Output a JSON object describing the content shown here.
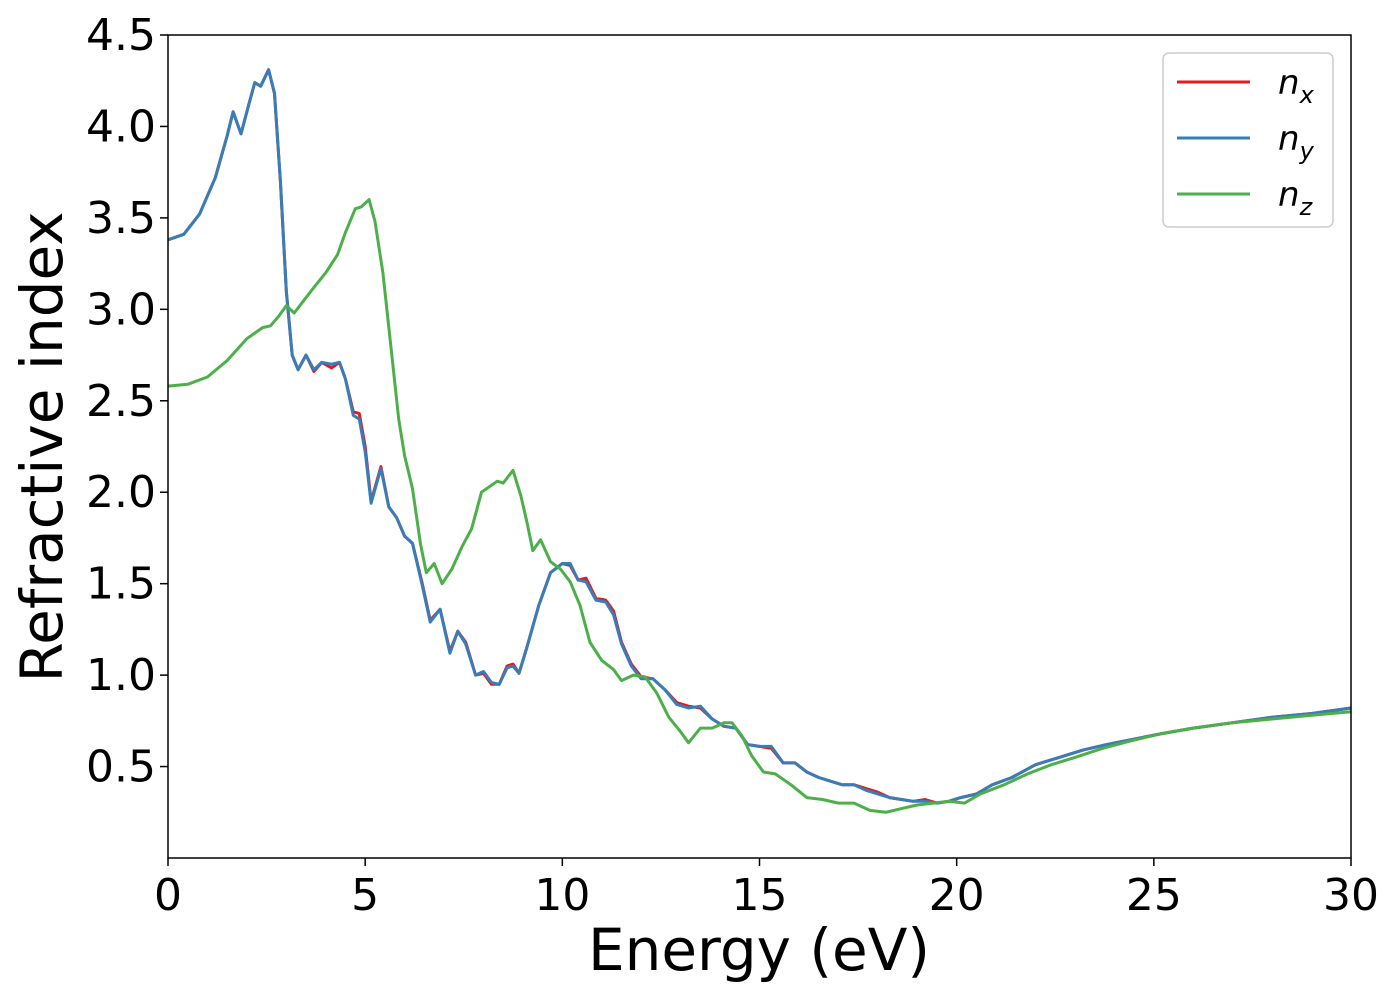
{
  "chart_data": {
    "type": "line",
    "xlabel": "Energy (eV)",
    "ylabel": "Refractive index",
    "xlim": [
      0,
      30
    ],
    "ylim": [
      0,
      4.5
    ],
    "x_ticks": [
      0,
      5,
      10,
      15,
      20,
      25,
      30
    ],
    "y_ticks": [
      0.5,
      1.0,
      1.5,
      2.0,
      2.5,
      3.0,
      3.5,
      4.0,
      4.5
    ],
    "x_tick_labels": [
      "0",
      "5",
      "10",
      "15",
      "20",
      "25",
      "30"
    ],
    "y_tick_labels": [
      "0.5",
      "1.0",
      "1.5",
      "2.0",
      "2.5",
      "3.0",
      "3.5",
      "4.0",
      "4.5"
    ],
    "grid": false,
    "legend_position": "top-right",
    "series": [
      {
        "name": "n_x",
        "label_base": "n",
        "label_sub": "x",
        "color": "#e41a1c",
        "points": [
          [
            0,
            3.38
          ],
          [
            0.4,
            3.41
          ],
          [
            0.8,
            3.52
          ],
          [
            1.2,
            3.72
          ],
          [
            1.5,
            3.95
          ],
          [
            1.65,
            4.08
          ],
          [
            1.85,
            3.96
          ],
          [
            2.05,
            4.12
          ],
          [
            2.2,
            4.24
          ],
          [
            2.35,
            4.22
          ],
          [
            2.55,
            4.31
          ],
          [
            2.7,
            4.18
          ],
          [
            2.85,
            3.7
          ],
          [
            3.0,
            3.1
          ],
          [
            3.15,
            2.75
          ],
          [
            3.3,
            2.67
          ],
          [
            3.5,
            2.75
          ],
          [
            3.7,
            2.66
          ],
          [
            3.9,
            2.71
          ],
          [
            4.15,
            2.68
          ],
          [
            4.35,
            2.71
          ],
          [
            4.5,
            2.62
          ],
          [
            4.7,
            2.44
          ],
          [
            4.85,
            2.43
          ],
          [
            5.0,
            2.25
          ],
          [
            5.15,
            1.95
          ],
          [
            5.4,
            2.14
          ],
          [
            5.6,
            1.92
          ],
          [
            5.8,
            1.86
          ],
          [
            6.0,
            1.76
          ],
          [
            6.2,
            1.72
          ],
          [
            6.45,
            1.5
          ],
          [
            6.65,
            1.3
          ],
          [
            6.9,
            1.36
          ],
          [
            7.15,
            1.13
          ],
          [
            7.35,
            1.24
          ],
          [
            7.55,
            1.18
          ],
          [
            7.8,
            1.0
          ],
          [
            8.0,
            1.01
          ],
          [
            8.2,
            0.95
          ],
          [
            8.4,
            0.95
          ],
          [
            8.6,
            1.05
          ],
          [
            8.75,
            1.06
          ],
          [
            8.9,
            1.01
          ],
          [
            9.1,
            1.15
          ],
          [
            9.4,
            1.38
          ],
          [
            9.7,
            1.56
          ],
          [
            10.0,
            1.61
          ],
          [
            10.2,
            1.6
          ],
          [
            10.4,
            1.52
          ],
          [
            10.6,
            1.53
          ],
          [
            10.85,
            1.42
          ],
          [
            11.1,
            1.41
          ],
          [
            11.3,
            1.35
          ],
          [
            11.5,
            1.18
          ],
          [
            11.75,
            1.06
          ],
          [
            12.0,
            0.99
          ],
          [
            12.3,
            0.98
          ],
          [
            12.6,
            0.92
          ],
          [
            12.9,
            0.85
          ],
          [
            13.2,
            0.83
          ],
          [
            13.5,
            0.82
          ],
          [
            13.8,
            0.76
          ],
          [
            14.1,
            0.72
          ],
          [
            14.4,
            0.71
          ],
          [
            14.7,
            0.62
          ],
          [
            15.0,
            0.61
          ],
          [
            15.3,
            0.6
          ],
          [
            15.6,
            0.52
          ],
          [
            15.9,
            0.52
          ],
          [
            16.2,
            0.47
          ],
          [
            16.5,
            0.44
          ],
          [
            16.8,
            0.42
          ],
          [
            17.1,
            0.4
          ],
          [
            17.4,
            0.4
          ],
          [
            17.7,
            0.38
          ],
          [
            18.0,
            0.36
          ],
          [
            18.3,
            0.33
          ],
          [
            18.6,
            0.32
          ],
          [
            18.9,
            0.31
          ],
          [
            19.2,
            0.32
          ],
          [
            19.5,
            0.3
          ],
          [
            19.8,
            0.31
          ],
          [
            20.1,
            0.33
          ],
          [
            20.5,
            0.35
          ],
          [
            20.9,
            0.4
          ],
          [
            21.4,
            0.44
          ],
          [
            22.0,
            0.51
          ],
          [
            22.6,
            0.55
          ],
          [
            23.2,
            0.59
          ],
          [
            23.8,
            0.62
          ],
          [
            24.5,
            0.65
          ],
          [
            25.2,
            0.68
          ],
          [
            26.0,
            0.71
          ],
          [
            27.0,
            0.74
          ],
          [
            28.0,
            0.77
          ],
          [
            29.0,
            0.79
          ],
          [
            30.0,
            0.82
          ]
        ]
      },
      {
        "name": "n_y",
        "label_base": "n",
        "label_sub": "y",
        "color": "#377eb8",
        "points": [
          [
            0,
            3.38
          ],
          [
            0.4,
            3.41
          ],
          [
            0.8,
            3.52
          ],
          [
            1.2,
            3.72
          ],
          [
            1.5,
            3.95
          ],
          [
            1.65,
            4.08
          ],
          [
            1.85,
            3.96
          ],
          [
            2.05,
            4.12
          ],
          [
            2.2,
            4.24
          ],
          [
            2.35,
            4.22
          ],
          [
            2.55,
            4.31
          ],
          [
            2.7,
            4.18
          ],
          [
            2.85,
            3.7
          ],
          [
            3.0,
            3.1
          ],
          [
            3.15,
            2.75
          ],
          [
            3.3,
            2.67
          ],
          [
            3.5,
            2.75
          ],
          [
            3.7,
            2.67
          ],
          [
            3.9,
            2.71
          ],
          [
            4.15,
            2.7
          ],
          [
            4.35,
            2.71
          ],
          [
            4.5,
            2.62
          ],
          [
            4.7,
            2.42
          ],
          [
            4.85,
            2.4
          ],
          [
            5.0,
            2.22
          ],
          [
            5.15,
            1.94
          ],
          [
            5.4,
            2.13
          ],
          [
            5.6,
            1.92
          ],
          [
            5.8,
            1.86
          ],
          [
            6.0,
            1.76
          ],
          [
            6.2,
            1.72
          ],
          [
            6.45,
            1.49
          ],
          [
            6.65,
            1.29
          ],
          [
            6.9,
            1.36
          ],
          [
            7.15,
            1.12
          ],
          [
            7.35,
            1.24
          ],
          [
            7.55,
            1.17
          ],
          [
            7.8,
            1.0
          ],
          [
            8.0,
            1.02
          ],
          [
            8.2,
            0.96
          ],
          [
            8.4,
            0.95
          ],
          [
            8.6,
            1.04
          ],
          [
            8.75,
            1.05
          ],
          [
            8.9,
            1.01
          ],
          [
            9.1,
            1.15
          ],
          [
            9.4,
            1.38
          ],
          [
            9.7,
            1.56
          ],
          [
            10.0,
            1.61
          ],
          [
            10.2,
            1.61
          ],
          [
            10.4,
            1.52
          ],
          [
            10.6,
            1.51
          ],
          [
            10.85,
            1.41
          ],
          [
            11.1,
            1.4
          ],
          [
            11.3,
            1.33
          ],
          [
            11.5,
            1.17
          ],
          [
            11.75,
            1.05
          ],
          [
            12.0,
            0.98
          ],
          [
            12.3,
            0.98
          ],
          [
            12.6,
            0.92
          ],
          [
            12.9,
            0.84
          ],
          [
            13.2,
            0.82
          ],
          [
            13.5,
            0.83
          ],
          [
            13.8,
            0.76
          ],
          [
            14.1,
            0.72
          ],
          [
            14.4,
            0.71
          ],
          [
            14.7,
            0.62
          ],
          [
            15.0,
            0.61
          ],
          [
            15.3,
            0.61
          ],
          [
            15.6,
            0.52
          ],
          [
            15.9,
            0.52
          ],
          [
            16.2,
            0.47
          ],
          [
            16.5,
            0.44
          ],
          [
            16.8,
            0.42
          ],
          [
            17.1,
            0.4
          ],
          [
            17.4,
            0.4
          ],
          [
            17.7,
            0.37
          ],
          [
            18.0,
            0.35
          ],
          [
            18.3,
            0.33
          ],
          [
            18.6,
            0.32
          ],
          [
            18.9,
            0.31
          ],
          [
            19.2,
            0.31
          ],
          [
            19.5,
            0.3
          ],
          [
            19.8,
            0.31
          ],
          [
            20.1,
            0.33
          ],
          [
            20.5,
            0.35
          ],
          [
            20.9,
            0.4
          ],
          [
            21.4,
            0.44
          ],
          [
            22.0,
            0.51
          ],
          [
            22.6,
            0.55
          ],
          [
            23.2,
            0.59
          ],
          [
            23.8,
            0.62
          ],
          [
            24.5,
            0.65
          ],
          [
            25.2,
            0.68
          ],
          [
            26.0,
            0.71
          ],
          [
            27.0,
            0.74
          ],
          [
            28.0,
            0.77
          ],
          [
            29.0,
            0.79
          ],
          [
            30.0,
            0.82
          ]
        ]
      },
      {
        "name": "n_z",
        "label_base": "n",
        "label_sub": "z",
        "color": "#4daf4a",
        "points": [
          [
            0,
            2.58
          ],
          [
            0.5,
            2.59
          ],
          [
            1.0,
            2.63
          ],
          [
            1.5,
            2.72
          ],
          [
            2.0,
            2.84
          ],
          [
            2.4,
            2.9
          ],
          [
            2.6,
            2.91
          ],
          [
            2.8,
            2.96
          ],
          [
            3.0,
            3.02
          ],
          [
            3.2,
            2.98
          ],
          [
            3.45,
            3.05
          ],
          [
            3.7,
            3.12
          ],
          [
            4.0,
            3.2
          ],
          [
            4.3,
            3.3
          ],
          [
            4.5,
            3.42
          ],
          [
            4.75,
            3.55
          ],
          [
            4.9,
            3.56
          ],
          [
            5.1,
            3.6
          ],
          [
            5.25,
            3.48
          ],
          [
            5.45,
            3.2
          ],
          [
            5.7,
            2.7
          ],
          [
            5.85,
            2.4
          ],
          [
            6.0,
            2.2
          ],
          [
            6.2,
            2.02
          ],
          [
            6.4,
            1.72
          ],
          [
            6.55,
            1.56
          ],
          [
            6.75,
            1.61
          ],
          [
            6.95,
            1.5
          ],
          [
            7.2,
            1.58
          ],
          [
            7.45,
            1.7
          ],
          [
            7.7,
            1.8
          ],
          [
            7.95,
            2.0
          ],
          [
            8.15,
            2.03
          ],
          [
            8.35,
            2.06
          ],
          [
            8.5,
            2.05
          ],
          [
            8.75,
            2.12
          ],
          [
            8.95,
            1.98
          ],
          [
            9.1,
            1.84
          ],
          [
            9.25,
            1.68
          ],
          [
            9.45,
            1.74
          ],
          [
            9.7,
            1.62
          ],
          [
            9.95,
            1.58
          ],
          [
            10.2,
            1.51
          ],
          [
            10.45,
            1.38
          ],
          [
            10.7,
            1.18
          ],
          [
            11.0,
            1.08
          ],
          [
            11.3,
            1.03
          ],
          [
            11.5,
            0.97
          ],
          [
            11.8,
            1.0
          ],
          [
            12.1,
            0.99
          ],
          [
            12.4,
            0.9
          ],
          [
            12.7,
            0.77
          ],
          [
            13.0,
            0.69
          ],
          [
            13.2,
            0.63
          ],
          [
            13.5,
            0.71
          ],
          [
            13.8,
            0.71
          ],
          [
            14.1,
            0.74
          ],
          [
            14.3,
            0.74
          ],
          [
            14.55,
            0.67
          ],
          [
            14.8,
            0.56
          ],
          [
            15.1,
            0.47
          ],
          [
            15.4,
            0.46
          ],
          [
            15.8,
            0.4
          ],
          [
            16.2,
            0.33
          ],
          [
            16.6,
            0.32
          ],
          [
            17.0,
            0.3
          ],
          [
            17.4,
            0.3
          ],
          [
            17.8,
            0.26
          ],
          [
            18.2,
            0.25
          ],
          [
            18.6,
            0.27
          ],
          [
            19.0,
            0.29
          ],
          [
            19.4,
            0.3
          ],
          [
            19.8,
            0.31
          ],
          [
            20.2,
            0.3
          ],
          [
            20.6,
            0.35
          ],
          [
            21.2,
            0.4
          ],
          [
            21.8,
            0.46
          ],
          [
            22.4,
            0.51
          ],
          [
            23.0,
            0.55
          ],
          [
            23.7,
            0.6
          ],
          [
            24.4,
            0.64
          ],
          [
            25.2,
            0.68
          ],
          [
            26.0,
            0.71
          ],
          [
            27.0,
            0.74
          ],
          [
            28.0,
            0.76
          ],
          [
            29.0,
            0.78
          ],
          [
            30.0,
            0.8
          ]
        ]
      }
    ]
  }
}
